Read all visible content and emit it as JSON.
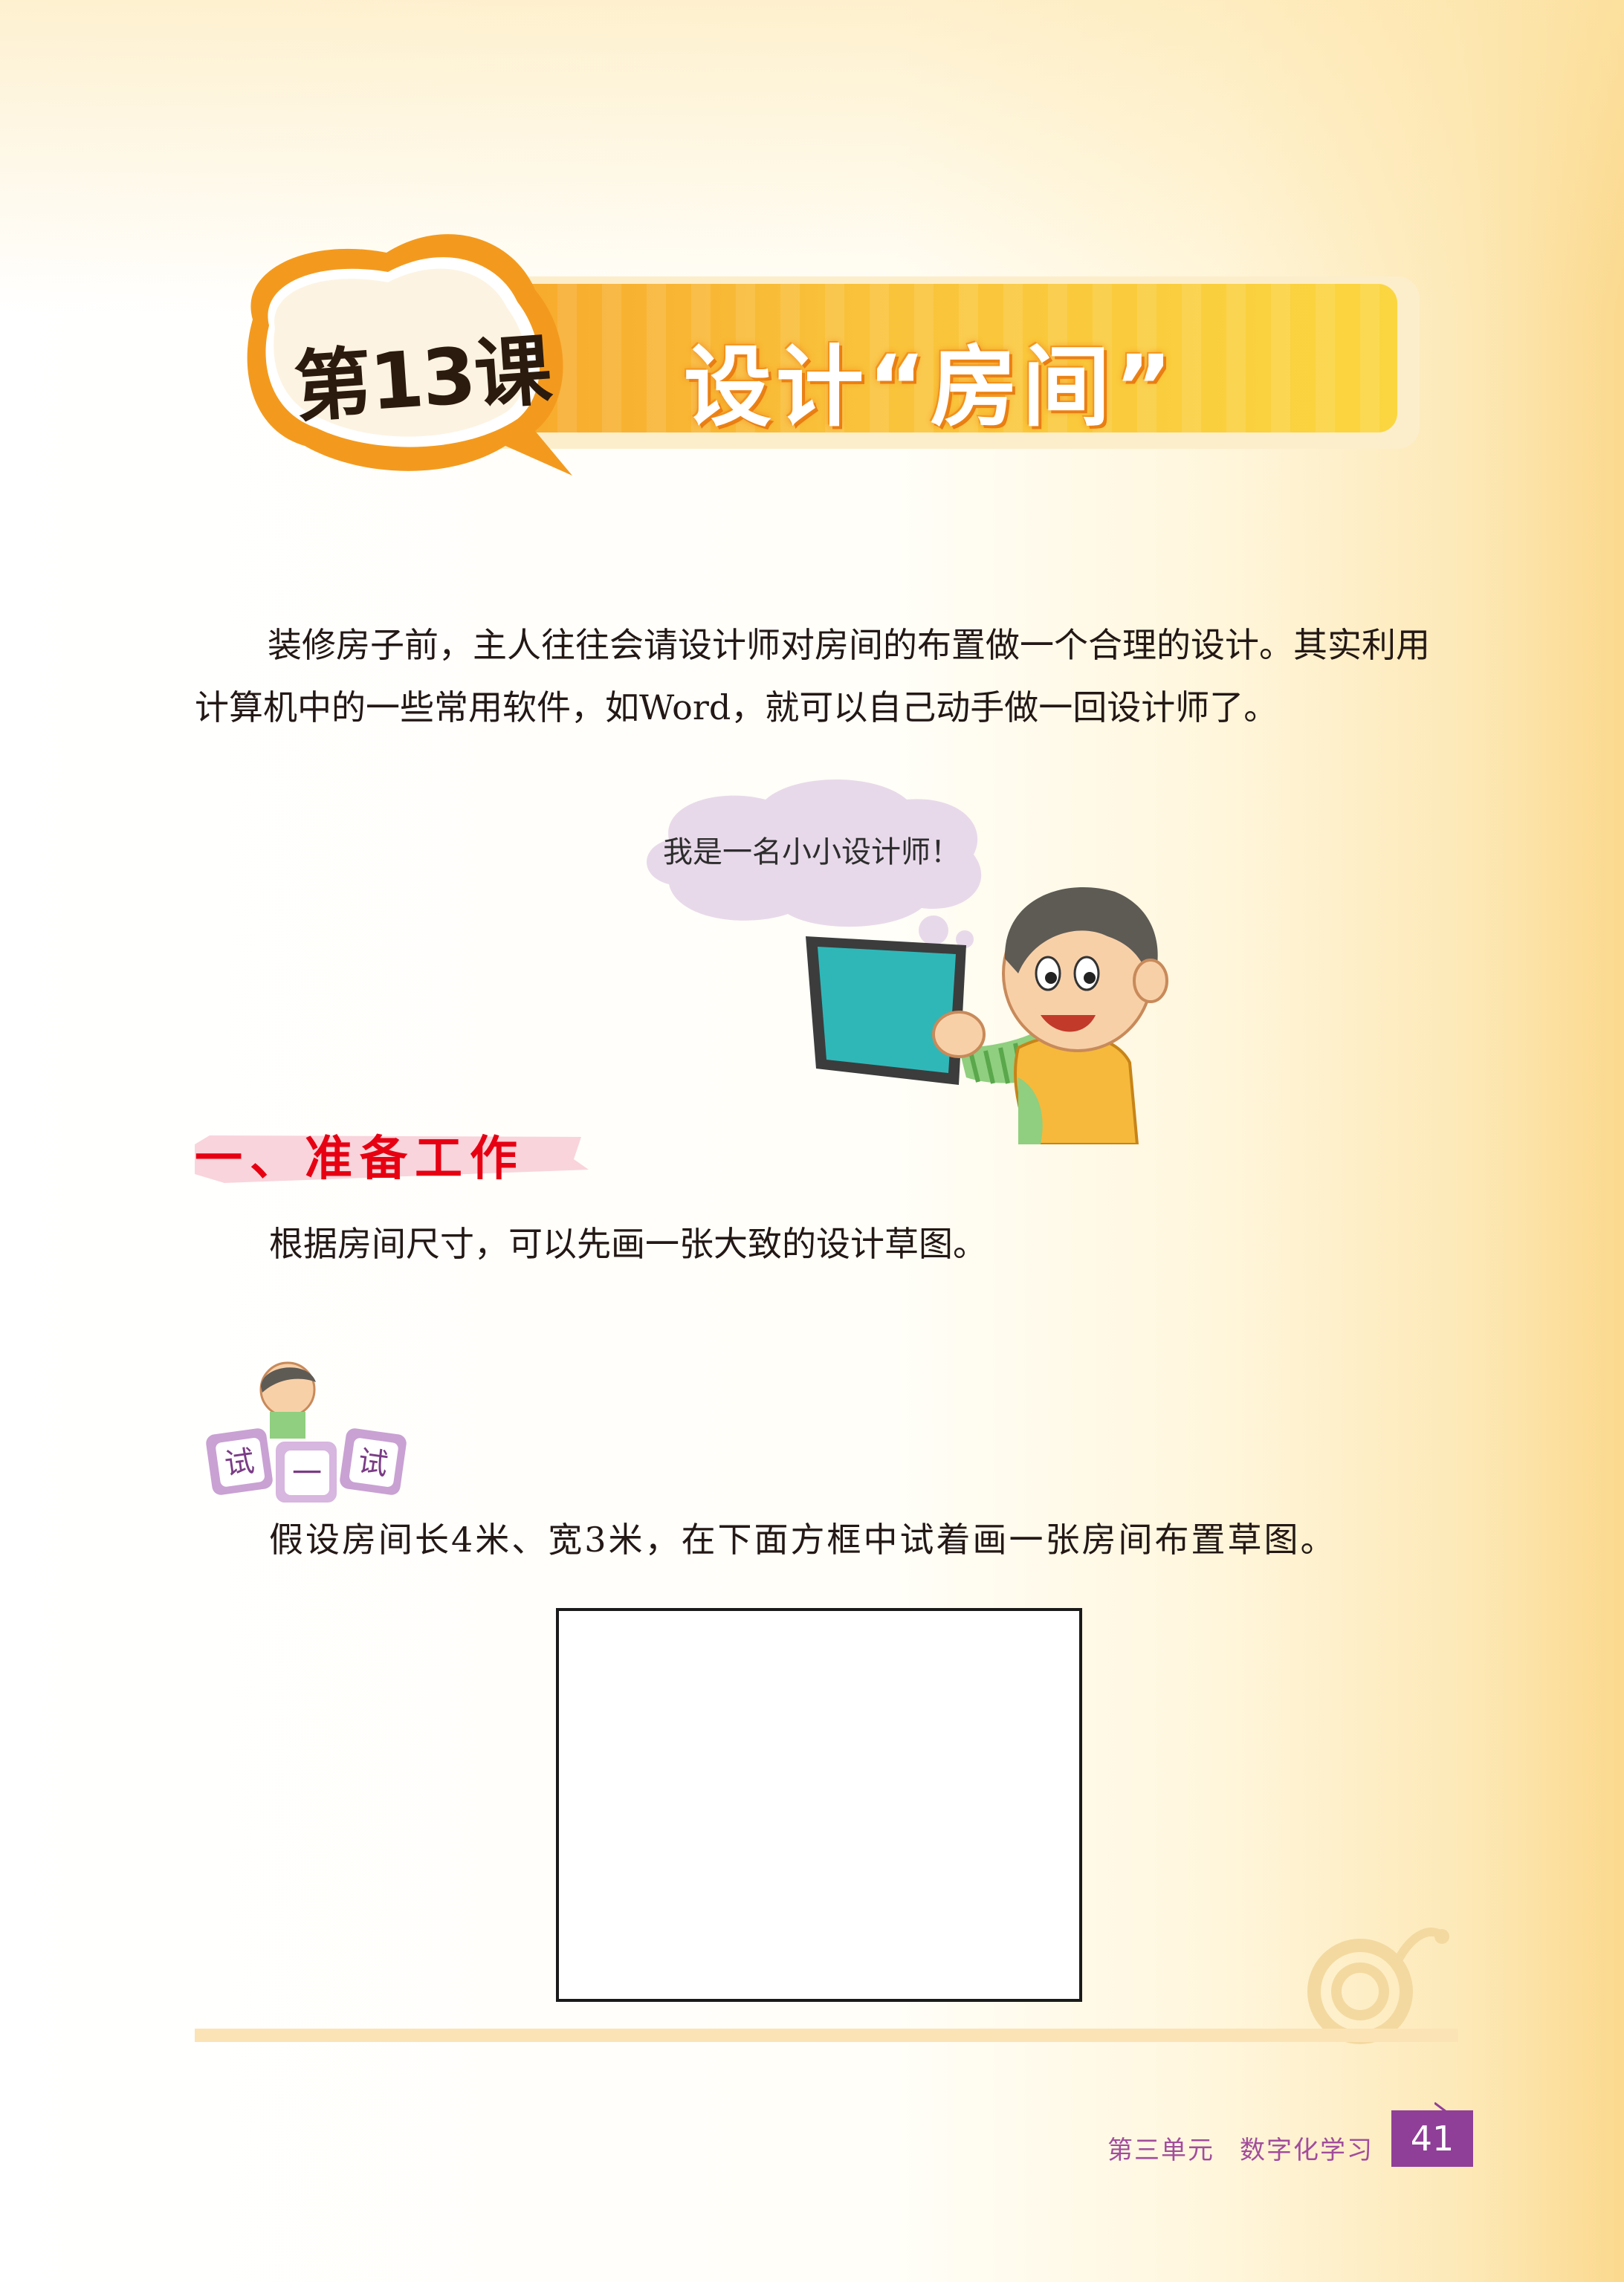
{
  "header": {
    "lesson_badge": "第13课",
    "lesson_title": "设计“房间”"
  },
  "intro": {
    "text": "装修房子前，主人往往会请设计师对房间的布置做一个合理的设计。其实利用计算机中的一些常用软件，如Word，就可以自己动手做一回设计师了。"
  },
  "speech_bubble": {
    "text": "我是一名小小设计师！"
  },
  "section1": {
    "heading": "一、准备工作",
    "text": "根据房间尺寸，可以先画一张大致的设计草图。"
  },
  "try_it": {
    "badge_chars": [
      "试",
      "一",
      "试"
    ],
    "instruction": "假设房间长4米、宽3米，在下面方框中试着画一张房间布置草图。"
  },
  "footer": {
    "unit": "第三单元",
    "unit_title": "数字化学习",
    "page_number": "41"
  },
  "colors": {
    "banner_orange": "#f7a72b",
    "heading_red": "#e60012",
    "footer_purple": "#8f3f97"
  }
}
